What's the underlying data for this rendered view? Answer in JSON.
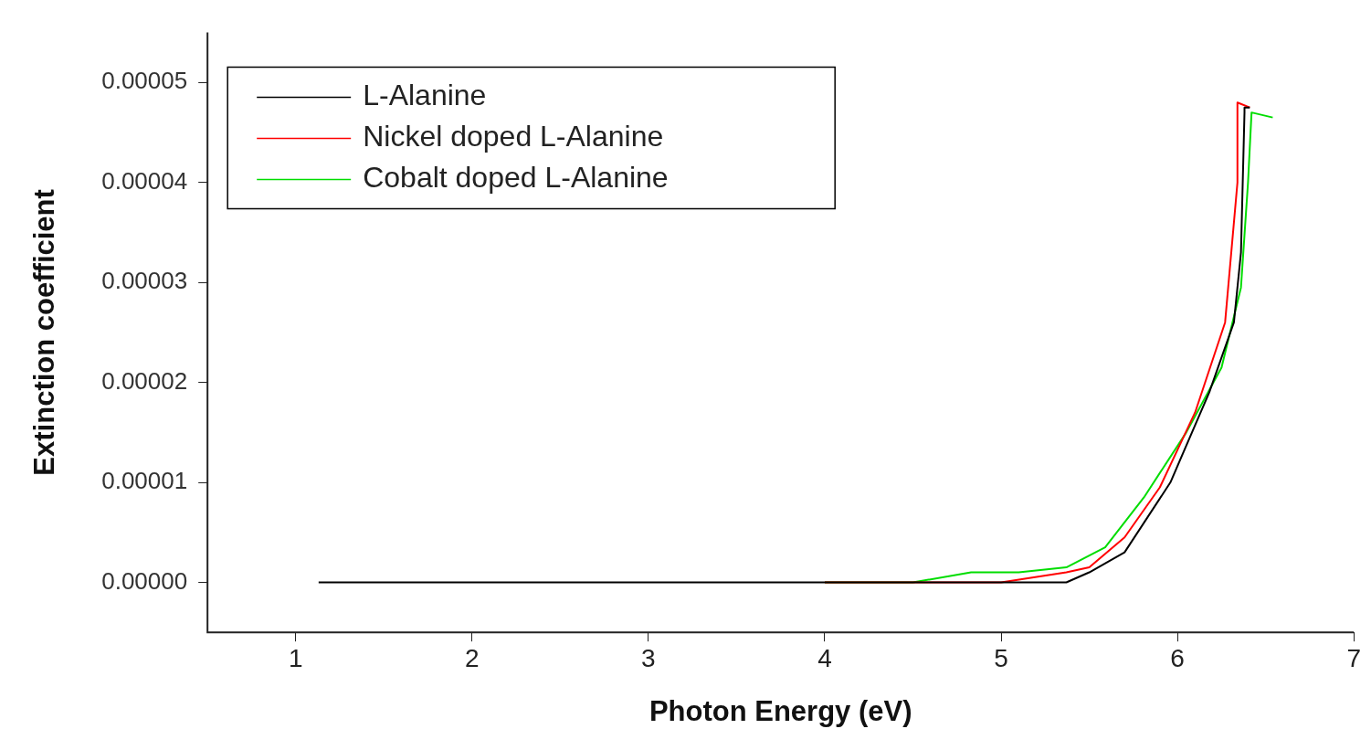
{
  "chart_data": {
    "type": "line",
    "xlabel": "Photon Energy (eV)",
    "ylabel": "Extinction coefficient",
    "xlim": [
      0.5,
      7
    ],
    "xticks": [
      1,
      2,
      3,
      4,
      5,
      6,
      7
    ],
    "ylim": [
      -5e-06,
      5.5e-05
    ],
    "yticks": [
      {
        "value": 0,
        "label": "0.00000"
      },
      {
        "value": 1e-05,
        "label": "0.00001"
      },
      {
        "value": 2e-05,
        "label": "0.00002"
      },
      {
        "value": 3e-05,
        "label": "0.00003"
      },
      {
        "value": 4e-05,
        "label": "0.00004"
      },
      {
        "value": 5e-05,
        "label": "0.00005"
      }
    ],
    "grid": false,
    "legend": "top left",
    "marker": "none",
    "line_style": "solid",
    "series": [
      {
        "name": "L-Alanine",
        "color": "#000000",
        "x": [
          1.13,
          1.3,
          1.4,
          2,
          3,
          4,
          5,
          5.37,
          5.5,
          5.7,
          5.96,
          6.18,
          6.32,
          6.36,
          6.38,
          6.38,
          6.41
        ],
        "values": [
          0,
          0,
          0,
          0,
          0,
          0,
          0,
          0,
          1e-06,
          3e-06,
          1e-05,
          1.9e-05,
          2.6e-05,
          3.3e-05,
          4.7e-05,
          4.75e-05,
          4.75e-05
        ]
      },
      {
        "name": "Nickel doped L-Alanine",
        "color": "#ff0000",
        "x": [
          4,
          5,
          5.37,
          5.5,
          5.7,
          5.9,
          6.1,
          6.27,
          6.34,
          6.34,
          6.41
        ],
        "values": [
          0,
          0,
          1e-06,
          1.5e-06,
          4.5e-06,
          9.5e-06,
          1.7e-05,
          2.6e-05,
          4e-05,
          4.8e-05,
          4.75e-05
        ]
      },
      {
        "name": "Cobalt doped L-Alanine",
        "color": "#00dd00",
        "x": [
          4,
          4.5,
          4.83,
          5.1,
          5.37,
          5.59,
          5.81,
          6.05,
          6.25,
          6.36,
          6.4,
          6.42,
          6.54
        ],
        "values": [
          0,
          0,
          1e-06,
          1e-06,
          1.5e-06,
          3.5e-06,
          8.5e-06,
          1.5e-05,
          2.15e-05,
          2.95e-05,
          4e-05,
          4.7e-05,
          4.65e-05
        ]
      }
    ]
  }
}
